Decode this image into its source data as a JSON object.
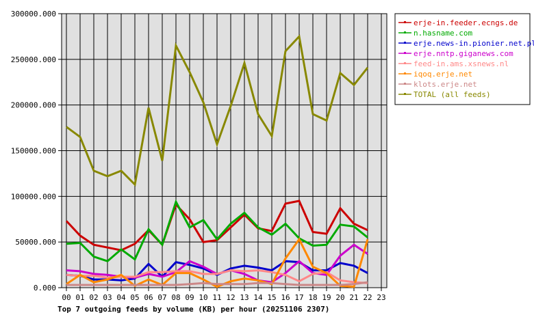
{
  "chart_data": {
    "type": "line",
    "title": "Top 7 outgoing feeds by volume (KB) per hour (20251106 2307)",
    "xlabel": "",
    "ylabel": "",
    "ylim": [
      0,
      300000
    ],
    "yticks": [
      "0.000",
      "50000.000",
      "100000.000",
      "150000.000",
      "200000.000",
      "250000.000",
      "300000.000"
    ],
    "categories": [
      "00",
      "01",
      "02",
      "03",
      "04",
      "05",
      "06",
      "07",
      "08",
      "09",
      "10",
      "11",
      "12",
      "13",
      "14",
      "15",
      "16",
      "17",
      "18",
      "19",
      "20",
      "21",
      "22",
      "23"
    ],
    "grid": true,
    "legend_position": "right-top",
    "series": [
      {
        "name": "erje-in.feeder.ecngs.de",
        "color": "#cc0000",
        "values": [
          73000,
          57000,
          47000,
          44000,
          41000,
          48000,
          63000,
          47000,
          91000,
          75000,
          50000,
          52000,
          66000,
          80000,
          65000,
          62000,
          92000,
          95000,
          61000,
          59000,
          87000,
          70000,
          63000
        ]
      },
      {
        "name": "n.hasname.com",
        "color": "#00aa00",
        "values": [
          48000,
          49000,
          34000,
          29000,
          42000,
          31000,
          64000,
          47000,
          94000,
          66000,
          74000,
          53000,
          70000,
          82000,
          66000,
          58000,
          70000,
          54000,
          46000,
          47000,
          69000,
          67000,
          55000
        ]
      },
      {
        "name": "erje.news-in.pionier.net.pl",
        "color": "#0000cc",
        "values": [
          14000,
          13000,
          9000,
          9000,
          8000,
          10000,
          26000,
          12000,
          28000,
          25000,
          21000,
          14000,
          21000,
          24000,
          22000,
          19000,
          29000,
          28000,
          19000,
          19000,
          27000,
          24000,
          16000
        ]
      },
      {
        "name": "erje.nntp.giganews.com",
        "color": "#cc00cc",
        "values": [
          19000,
          18000,
          15000,
          14000,
          12000,
          11000,
          15000,
          12000,
          17000,
          29000,
          23000,
          15000,
          19000,
          15000,
          8000,
          6000,
          16000,
          29000,
          16000,
          14000,
          35000,
          47000,
          37000
        ]
      },
      {
        "name": "feed-in.ams.xsnews.nl",
        "color": "#ff8888",
        "values": [
          14000,
          13000,
          13000,
          11000,
          12000,
          12000,
          17000,
          17000,
          18000,
          18000,
          15000,
          15000,
          19000,
          18000,
          19000,
          17000,
          14000,
          7000,
          15000,
          17000,
          8000,
          6000,
          5000
        ]
      },
      {
        "name": "iqoq.erje.net",
        "color": "#ff8800",
        "values": [
          4000,
          14000,
          6000,
          9000,
          14000,
          2000,
          9000,
          3000,
          16000,
          16000,
          9000,
          1000,
          7000,
          10000,
          8000,
          4000,
          32000,
          53000,
          23000,
          16000,
          2000,
          1000,
          53000
        ]
      },
      {
        "name": "klots.erje.net",
        "color": "#cc8888",
        "values": [
          3000,
          3000,
          3000,
          3000,
          3000,
          3000,
          3000,
          3000,
          3000,
          4000,
          5000,
          4000,
          4000,
          4000,
          5000,
          5000,
          4000,
          3000,
          3000,
          3000,
          3000,
          4000,
          6000
        ]
      },
      {
        "name": "TOTAL (all feeds)",
        "color": "#888800",
        "values": [
          176000,
          165000,
          128000,
          122000,
          128000,
          113000,
          197000,
          139000,
          265000,
          236000,
          203000,
          157000,
          199000,
          246000,
          190000,
          166000,
          259000,
          275000,
          190000,
          183000,
          235000,
          222000,
          241000
        ]
      }
    ]
  },
  "colors": {
    "plot_bg": "#e0e0e0",
    "grid": "#000000",
    "background": "#ffffff"
  }
}
